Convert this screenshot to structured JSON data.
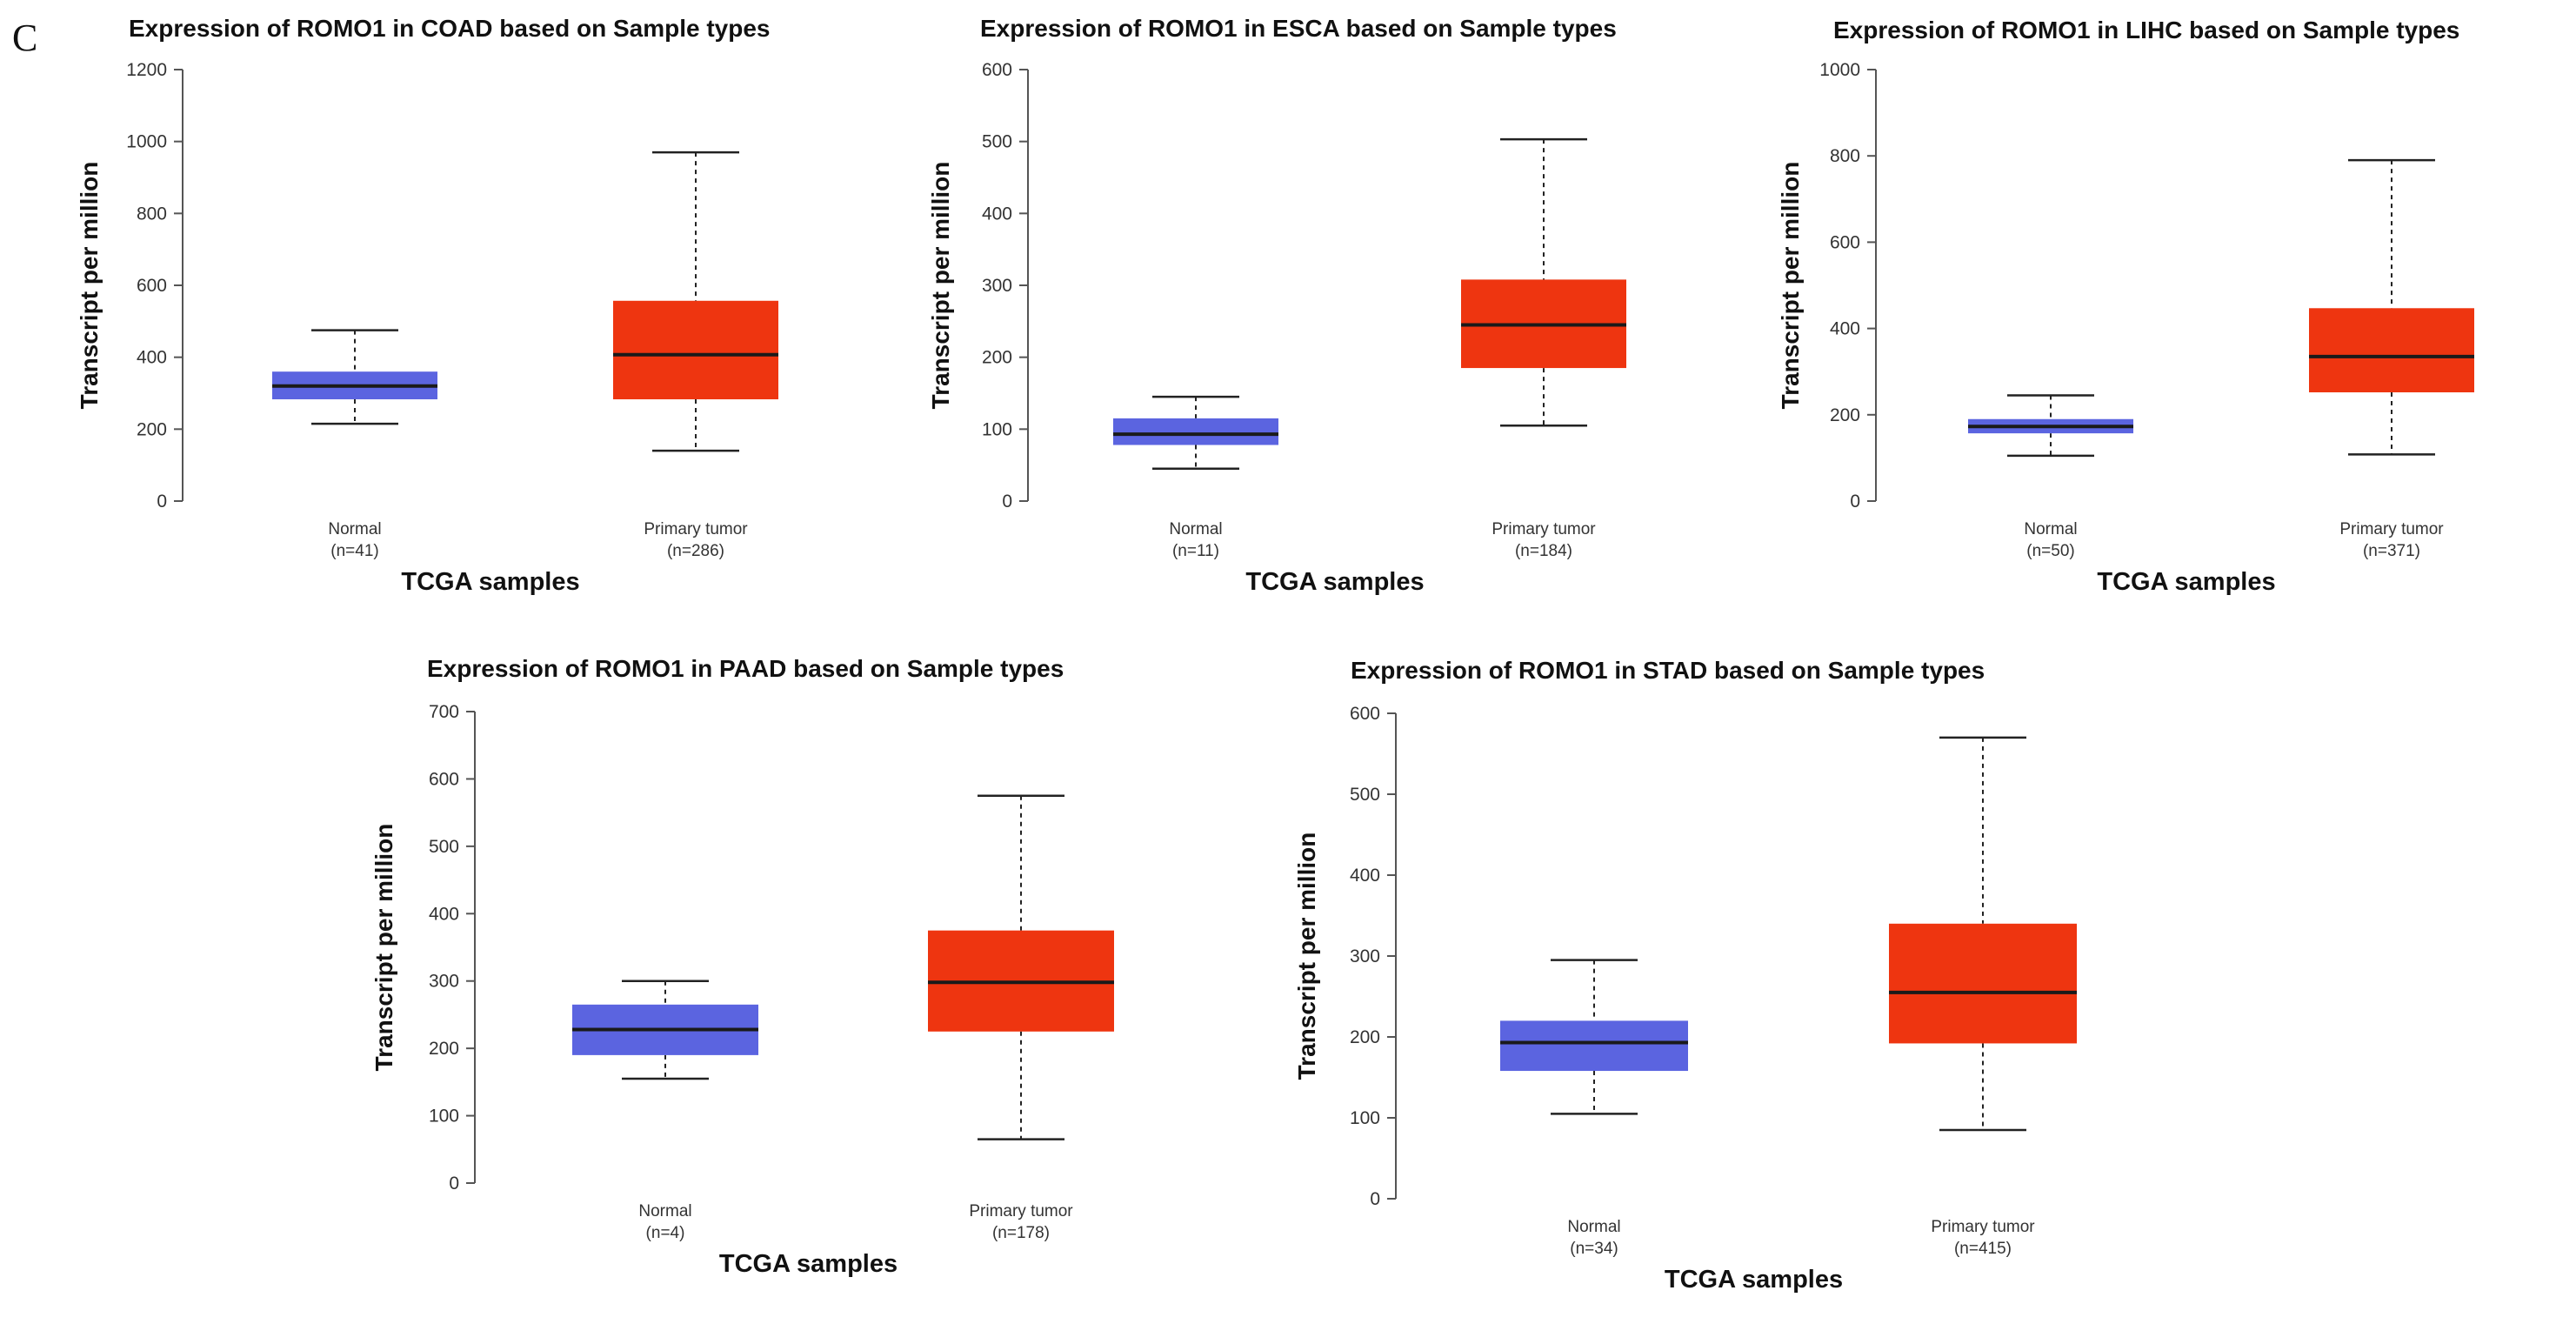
{
  "panel_label": "C",
  "colors": {
    "normal": "#5b64e0",
    "tumor": "#ee3510"
  },
  "chart_data": [
    {
      "type": "boxplot",
      "title": "Expression of ROMO1 in COAD based on Sample types",
      "xlabel": "TCGA samples",
      "ylabel": "Transcript per million",
      "ylim": [
        0,
        1200
      ],
      "yticks": [
        0,
        200,
        400,
        600,
        800,
        1000,
        1200
      ],
      "groups": [
        {
          "name": "Normal",
          "n": "(n=41)",
          "min": 215,
          "q1": 283,
          "median": 320,
          "q3": 360,
          "max": 475
        },
        {
          "name": "Primary tumor",
          "n": "(n=286)",
          "min": 140,
          "q1": 283,
          "median": 407,
          "q3": 557,
          "max": 970
        }
      ]
    },
    {
      "type": "boxplot",
      "title": "Expression of ROMO1 in ESCA based on Sample types",
      "xlabel": "TCGA samples",
      "ylabel": "Transcript per million",
      "ylim": [
        0,
        600
      ],
      "yticks": [
        0,
        100,
        200,
        300,
        400,
        500,
        600
      ],
      "groups": [
        {
          "name": "Normal",
          "n": "(n=11)",
          "min": 45,
          "q1": 78,
          "median": 93,
          "q3": 115,
          "max": 145
        },
        {
          "name": "Primary tumor",
          "n": "(n=184)",
          "min": 105,
          "q1": 185,
          "median": 245,
          "q3": 308,
          "max": 503
        }
      ]
    },
    {
      "type": "boxplot",
      "title": "Expression of ROMO1 in LIHC based on Sample types",
      "xlabel": "TCGA samples",
      "ylabel": "Transcript per million",
      "ylim": [
        0,
        1000
      ],
      "yticks": [
        0,
        200,
        400,
        600,
        800,
        1000
      ],
      "groups": [
        {
          "name": "Normal",
          "n": "(n=50)",
          "min": 105,
          "q1": 157,
          "median": 173,
          "q3": 190,
          "max": 245
        },
        {
          "name": "Primary tumor",
          "n": "(n=371)",
          "min": 108,
          "q1": 252,
          "median": 335,
          "q3": 447,
          "max": 790
        }
      ]
    },
    {
      "type": "boxplot",
      "title": "Expression of ROMO1 in PAAD based on Sample types",
      "xlabel": "TCGA samples",
      "ylabel": "Transcript per million",
      "ylim": [
        0,
        700
      ],
      "yticks": [
        0,
        100,
        200,
        300,
        400,
        500,
        600,
        700
      ],
      "groups": [
        {
          "name": "Normal",
          "n": "(n=4)",
          "min": 155,
          "q1": 190,
          "median": 228,
          "q3": 265,
          "max": 300
        },
        {
          "name": "Primary tumor",
          "n": "(n=178)",
          "min": 65,
          "q1": 225,
          "median": 298,
          "q3": 375,
          "max": 575
        }
      ]
    },
    {
      "type": "boxplot",
      "title": "Expression of ROMO1 in STAD based on Sample types",
      "xlabel": "TCGA samples",
      "ylabel": "Transcript per million",
      "ylim": [
        0,
        600
      ],
      "yticks": [
        0,
        100,
        200,
        300,
        400,
        500,
        600
      ],
      "groups": [
        {
          "name": "Normal",
          "n": "(n=34)",
          "min": 105,
          "q1": 158,
          "median": 193,
          "q3": 220,
          "max": 295
        },
        {
          "name": "Primary tumor",
          "n": "(n=415)",
          "min": 85,
          "q1": 192,
          "median": 255,
          "q3": 340,
          "max": 570
        }
      ]
    }
  ]
}
